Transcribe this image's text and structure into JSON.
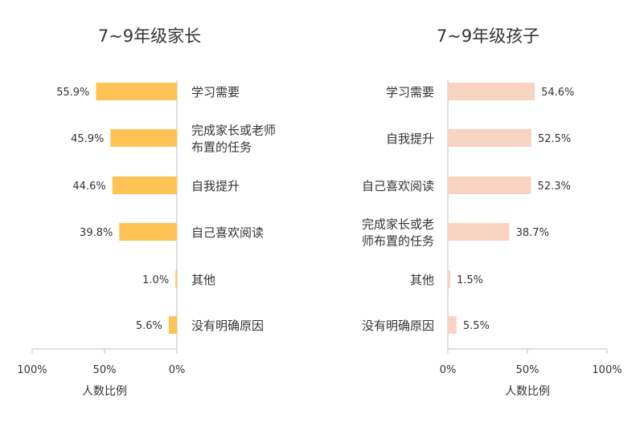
{
  "chart_data": [
    {
      "type": "bar",
      "orientation": "horizontal",
      "title": "7~9年级家长",
      "xlabel": "人数比例",
      "xlim": [
        0,
        100
      ],
      "direction": "right-to-left",
      "color": "#FFC355",
      "categories": [
        [
          "学习需要"
        ],
        [
          "完成家长或老师",
          "布置的任务"
        ],
        [
          "自我提升"
        ],
        [
          "自己喜欢阅读"
        ],
        [
          "其他"
        ],
        [
          "没有明确原因"
        ]
      ],
      "values": [
        55.9,
        45.9,
        44.6,
        39.8,
        1.0,
        5.6
      ],
      "value_labels": [
        "55.9%",
        "45.9%",
        "44.6%",
        "39.8%",
        "1.0%",
        "5.6%"
      ],
      "ticks": [
        "100%",
        "50%",
        "0%"
      ]
    },
    {
      "type": "bar",
      "orientation": "horizontal",
      "title": "7~9年级孩子",
      "xlabel": "人数比例",
      "xlim": [
        0,
        100
      ],
      "direction": "left-to-right",
      "color": "#F8D3C1",
      "categories": [
        [
          "学习需要"
        ],
        [
          "自我提升"
        ],
        [
          "自己喜欢阅读"
        ],
        [
          "完成家长或老",
          "师布置的任务"
        ],
        [
          "其他"
        ],
        [
          "没有明确原因"
        ]
      ],
      "values": [
        54.6,
        52.5,
        52.3,
        38.7,
        1.5,
        5.5
      ],
      "value_labels": [
        "54.6%",
        "52.5%",
        "52.3%",
        "38.7%",
        "1.5%",
        "5.5%"
      ],
      "ticks": [
        "0%",
        "50%",
        "100%"
      ]
    }
  ],
  "colors": {
    "text": "#333333",
    "axis": "#BFBFBF",
    "left_bar": "#FFC355",
    "right_bar": "#F8D3C1"
  }
}
